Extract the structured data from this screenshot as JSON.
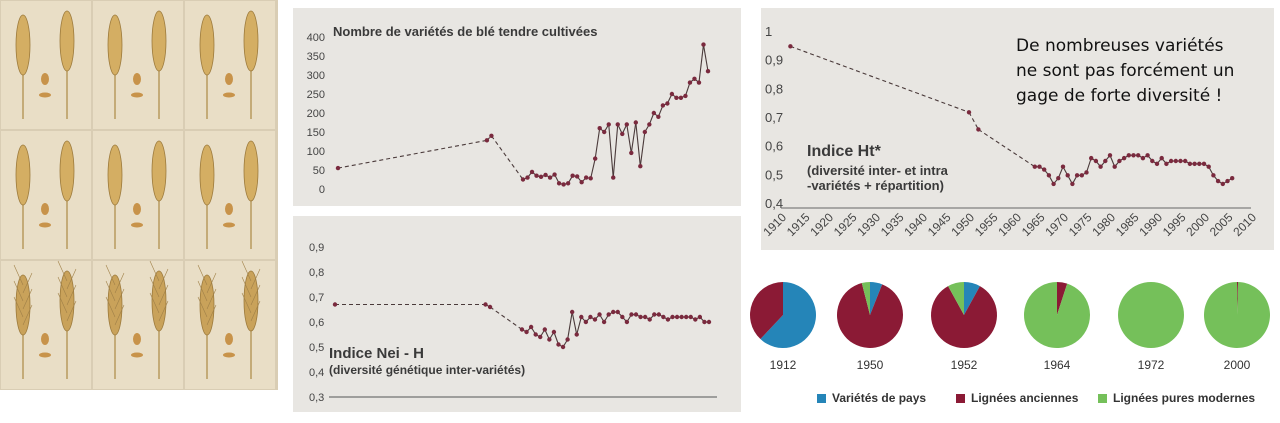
{
  "colors": {
    "line": "#4a3a3a",
    "marker": "#7a2a3e",
    "pays": "#2585b8",
    "anciennes": "#8b1a35",
    "modernes": "#75c05a"
  },
  "wheat_images": {
    "rows": 3,
    "cols": 3
  },
  "chart_data": [
    {
      "type": "line",
      "title": "Nombre de variétés de blé tendre cultivées",
      "xlabel": "",
      "ylabel": "",
      "ylim": [
        0,
        400
      ],
      "yticks": [
        "0",
        "50",
        "100",
        "150",
        "200",
        "250",
        "300",
        "350",
        "400"
      ],
      "grid": false,
      "x": [
        1912,
        1945,
        1946,
        1953,
        1954,
        1955,
        1956,
        1957,
        1958,
        1959,
        1960,
        1961,
        1962,
        1963,
        1964,
        1965,
        1966,
        1967,
        1968,
        1969,
        1970,
        1971,
        1972,
        1973,
        1974,
        1975,
        1976,
        1977,
        1978,
        1979,
        1980,
        1981,
        1982,
        1983,
        1984,
        1985,
        1986,
        1987,
        1988,
        1989,
        1990,
        1991,
        1992,
        1993,
        1994
      ],
      "series": [
        {
          "values": [
            55,
            128,
            140,
            25,
            30,
            45,
            35,
            32,
            37,
            30,
            38,
            15,
            12,
            15,
            35,
            33,
            18,
            30,
            28,
            80,
            160,
            150,
            170,
            30,
            170,
            145,
            170,
            95,
            175,
            60,
            150,
            170,
            200,
            190,
            220,
            225,
            250,
            240,
            240,
            245,
            280,
            290,
            280,
            380,
            310
          ],
          "dashed_until_index": 3
        }
      ]
    },
    {
      "type": "line",
      "title": "Indice Nei - H",
      "subtitle": "(diversité génétique inter-variétés)",
      "xlabel": "",
      "ylabel": "",
      "ylim": [
        0.3,
        0.9
      ],
      "yticks": [
        "0,3",
        "0,4",
        "0,5",
        "0,6",
        "0,7",
        "0,8",
        "0,9"
      ],
      "grid": false,
      "x": [
        1912,
        1945,
        1946,
        1953,
        1954,
        1955,
        1956,
        1957,
        1958,
        1959,
        1960,
        1961,
        1962,
        1963,
        1964,
        1965,
        1966,
        1967,
        1968,
        1969,
        1970,
        1971,
        1972,
        1973,
        1974,
        1975,
        1976,
        1977,
        1978,
        1979,
        1980,
        1981,
        1982,
        1983,
        1984,
        1985,
        1986,
        1987,
        1988,
        1989,
        1990,
        1991,
        1992,
        1993,
        1994
      ],
      "series": [
        {
          "values": [
            0.67,
            0.67,
            0.66,
            0.57,
            0.56,
            0.58,
            0.55,
            0.54,
            0.57,
            0.53,
            0.56,
            0.51,
            0.5,
            0.53,
            0.64,
            0.55,
            0.62,
            0.6,
            0.62,
            0.61,
            0.63,
            0.6,
            0.63,
            0.64,
            0.64,
            0.62,
            0.6,
            0.63,
            0.63,
            0.62,
            0.62,
            0.61,
            0.63,
            0.63,
            0.62,
            0.61,
            0.62,
            0.62,
            0.62,
            0.62,
            0.62,
            0.61,
            0.62,
            0.6,
            0.6
          ],
          "dashed_until_index": 3
        }
      ]
    },
    {
      "type": "line",
      "title": "Indice Ht*",
      "subtitle_lines": [
        "(diversité inter- et intra",
        "-variétés + répartition)"
      ],
      "xlabel": "",
      "ylabel": "",
      "xlim": [
        1910,
        2010
      ],
      "ylim": [
        0.4,
        1
      ],
      "xticks": [
        "1910",
        "1915",
        "1920",
        "1925",
        "1930",
        "1935",
        "1940",
        "1945",
        "1950",
        "1955",
        "1960",
        "1965",
        "1970",
        "1975",
        "1980",
        "1985",
        "1990",
        "1995",
        "2000",
        "2005",
        "2010"
      ],
      "yticks": [
        "0,4",
        "0,5",
        "0,6",
        "0,7",
        "0,8",
        "0,9",
        "1"
      ],
      "grid": false,
      "x": [
        1912,
        1950,
        1952,
        1964,
        1965,
        1966,
        1967,
        1968,
        1969,
        1970,
        1971,
        1972,
        1973,
        1974,
        1975,
        1976,
        1977,
        1978,
        1979,
        1980,
        1981,
        1982,
        1983,
        1984,
        1985,
        1986,
        1987,
        1988,
        1989,
        1990,
        1991,
        1992,
        1993,
        1994,
        1995,
        1996,
        1997,
        1998,
        1999,
        2000,
        2001,
        2002,
        2003,
        2004,
        2005,
        2006
      ],
      "series": [
        {
          "values": [
            0.95,
            0.72,
            0.66,
            0.53,
            0.53,
            0.52,
            0.5,
            0.47,
            0.49,
            0.53,
            0.5,
            0.47,
            0.5,
            0.5,
            0.51,
            0.56,
            0.55,
            0.53,
            0.55,
            0.57,
            0.53,
            0.55,
            0.56,
            0.57,
            0.57,
            0.57,
            0.56,
            0.57,
            0.55,
            0.54,
            0.56,
            0.54,
            0.55,
            0.55,
            0.55,
            0.55,
            0.54,
            0.54,
            0.54,
            0.54,
            0.53,
            0.5,
            0.48,
            0.47,
            0.48,
            0.49
          ],
          "dashed_until_index": 3
        }
      ]
    },
    {
      "type": "pie",
      "legend": [
        {
          "label": "Variétés de pays",
          "color_key": "pays"
        },
        {
          "label": "Lignées anciennes",
          "color_key": "anciennes"
        },
        {
          "label": "Lignées pures modernes",
          "color_key": "modernes"
        }
      ],
      "legend_position": "bottom",
      "pies": [
        {
          "label": "1912",
          "values": [
            0.62,
            0.38,
            0.0
          ]
        },
        {
          "label": "1950",
          "values": [
            0.06,
            0.9,
            0.04
          ]
        },
        {
          "label": "1952",
          "values": [
            0.08,
            0.84,
            0.08
          ]
        },
        {
          "label": "1964",
          "values": [
            0.0,
            0.05,
            0.95
          ]
        },
        {
          "label": "1972",
          "values": [
            0.0,
            0.0,
            1.0
          ]
        },
        {
          "label": "2000",
          "values": [
            0.0,
            0.005,
            0.995
          ]
        }
      ]
    }
  ],
  "annotation": {
    "lines": [
      "De nombreuses variétés",
      "ne sont pas forcément un",
      "gage de forte diversité !"
    ]
  }
}
